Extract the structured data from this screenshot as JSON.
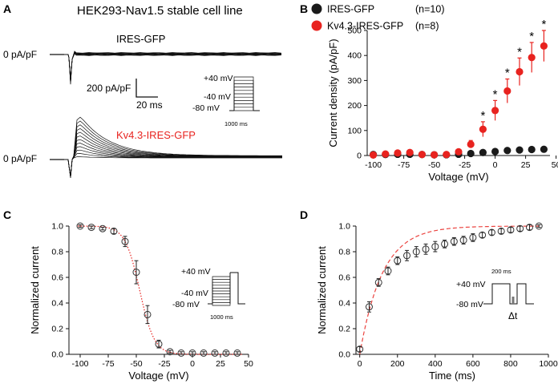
{
  "panel_labels": {
    "a": "A",
    "b": "B",
    "c": "C",
    "d": "D"
  },
  "panelA": {
    "title": "HEK293-Nav1.5 stable cell line",
    "zero_label_top": "0 pA/pF",
    "zero_label_bottom": "0 pA/pF",
    "trace_label_top": "IRES-GFP",
    "trace_label_bottom": "Kv4.3-IRES-GFP",
    "scale_current": "200 pA/pF",
    "scale_time": "20 ms",
    "protocol": {
      "v_high": "+40 mV",
      "v_mid": "-40 mV",
      "v_low": "-80 mV",
      "duration": "1000 ms"
    },
    "colors": {
      "bottom_label": "#e8231f"
    }
  },
  "chart_data": [
    {
      "id": "B",
      "type": "scatter",
      "xlabel": "Voltage (mV)",
      "ylabel": "Current density (pA/pF)",
      "xlim": [
        -105,
        45
      ],
      "ylim": [
        0,
        500
      ],
      "xticks": [
        -100,
        -75,
        -50,
        -25,
        0,
        25,
        50
      ],
      "yticks": [
        0,
        100,
        200,
        300,
        400,
        500
      ],
      "legend": [
        {
          "name": "IRES-GFP",
          "n": "(n=10)",
          "color": "#1a1a1a"
        },
        {
          "name": "Kv4.3-IRES-GFP",
          "n": "(n=8)",
          "color": "#e8231f"
        }
      ],
      "series": [
        {
          "name": "IRES-GFP",
          "color": "#1a1a1a",
          "x": [
            -100,
            -90,
            -80,
            -70,
            -60,
            -50,
            -40,
            -30,
            -20,
            -10,
            0,
            10,
            20,
            30,
            40
          ],
          "y": [
            4,
            4,
            5,
            5,
            4,
            3,
            3,
            5,
            8,
            12,
            16,
            20,
            22,
            24,
            25
          ],
          "err": [
            2,
            2,
            2,
            2,
            2,
            2,
            2,
            2,
            2,
            3,
            3,
            3,
            3,
            4,
            4
          ]
        },
        {
          "name": "Kv4.3-IRES-GFP",
          "color": "#e8231f",
          "x": [
            -100,
            -90,
            -80,
            -70,
            -60,
            -50,
            -40,
            -30,
            -20,
            -10,
            0,
            10,
            20,
            30,
            40
          ],
          "y": [
            2,
            6,
            10,
            12,
            4,
            3,
            4,
            15,
            45,
            105,
            180,
            258,
            335,
            392,
            438
          ],
          "err": [
            3,
            3,
            3,
            3,
            3,
            3,
            3,
            6,
            15,
            30,
            40,
            48,
            55,
            60,
            62
          ]
        }
      ],
      "annotations": [
        {
          "x": -10,
          "text": "*"
        },
        {
          "x": 0,
          "text": "*"
        },
        {
          "x": 10,
          "text": "*"
        },
        {
          "x": 20,
          "text": "*"
        },
        {
          "x": 30,
          "text": "*"
        },
        {
          "x": 40,
          "text": "*"
        }
      ]
    },
    {
      "id": "C",
      "type": "scatter",
      "xlabel": "Voltage (mV)",
      "ylabel": "Normalized current",
      "xlim": [
        -110,
        50
      ],
      "ylim": [
        0,
        1.0
      ],
      "xticks": [
        -100,
        -75,
        -50,
        -25,
        0,
        25,
        50
      ],
      "yticks": [
        0.0,
        0.2,
        0.4,
        0.6,
        0.8,
        1.0
      ],
      "fit": {
        "type": "boltzmann",
        "v_half": -47,
        "k": 6.5,
        "color": "#e8231f"
      },
      "series": [
        {
          "name": "data",
          "x": [
            -100,
            -90,
            -80,
            -70,
            -60,
            -50,
            -40,
            -30,
            -20,
            -10,
            0,
            10,
            20,
            30,
            40
          ],
          "y": [
            1.0,
            0.99,
            0.98,
            0.96,
            0.88,
            0.64,
            0.31,
            0.08,
            0.02,
            0.01,
            0.01,
            0.01,
            0.01,
            0.01,
            0.01
          ],
          "err": [
            0.01,
            0.01,
            0.01,
            0.02,
            0.04,
            0.09,
            0.07,
            0.03,
            0.01,
            0.01,
            0.01,
            0.01,
            0.01,
            0.01,
            0.01
          ]
        }
      ],
      "protocol": {
        "v_high": "+40 mV",
        "v_mid": "-40 mV",
        "v_low": "-80 mV",
        "duration": "1000 ms"
      }
    },
    {
      "id": "D",
      "type": "scatter",
      "xlabel": "Time (ms)",
      "ylabel": "Normalized current",
      "xlim": [
        -20,
        1000
      ],
      "ylim": [
        0,
        1.0
      ],
      "xticks": [
        0,
        200,
        400,
        600,
        800,
        1000
      ],
      "yticks": [
        0.0,
        0.2,
        0.4,
        0.6,
        0.8,
        1.0
      ],
      "fit": {
        "type": "exponential",
        "tau": 120,
        "color": "#e8231f"
      },
      "series": [
        {
          "name": "data",
          "x": [
            0,
            50,
            100,
            150,
            200,
            250,
            300,
            350,
            400,
            450,
            500,
            550,
            600,
            650,
            700,
            750,
            800,
            850,
            900,
            950
          ],
          "y": [
            0.04,
            0.37,
            0.56,
            0.65,
            0.73,
            0.77,
            0.8,
            0.82,
            0.84,
            0.86,
            0.88,
            0.89,
            0.91,
            0.93,
            0.95,
            0.96,
            0.97,
            0.98,
            0.99,
            1.0
          ],
          "err": [
            0.02,
            0.04,
            0.03,
            0.03,
            0.03,
            0.04,
            0.04,
            0.04,
            0.04,
            0.03,
            0.03,
            0.03,
            0.03,
            0.02,
            0.02,
            0.02,
            0.02,
            0.02,
            0.02,
            0.01
          ]
        }
      ],
      "protocol": {
        "v_high": "+40 mV",
        "v_low": "-80 mV",
        "pulse": "200 ms",
        "gap": "Δt"
      }
    }
  ]
}
